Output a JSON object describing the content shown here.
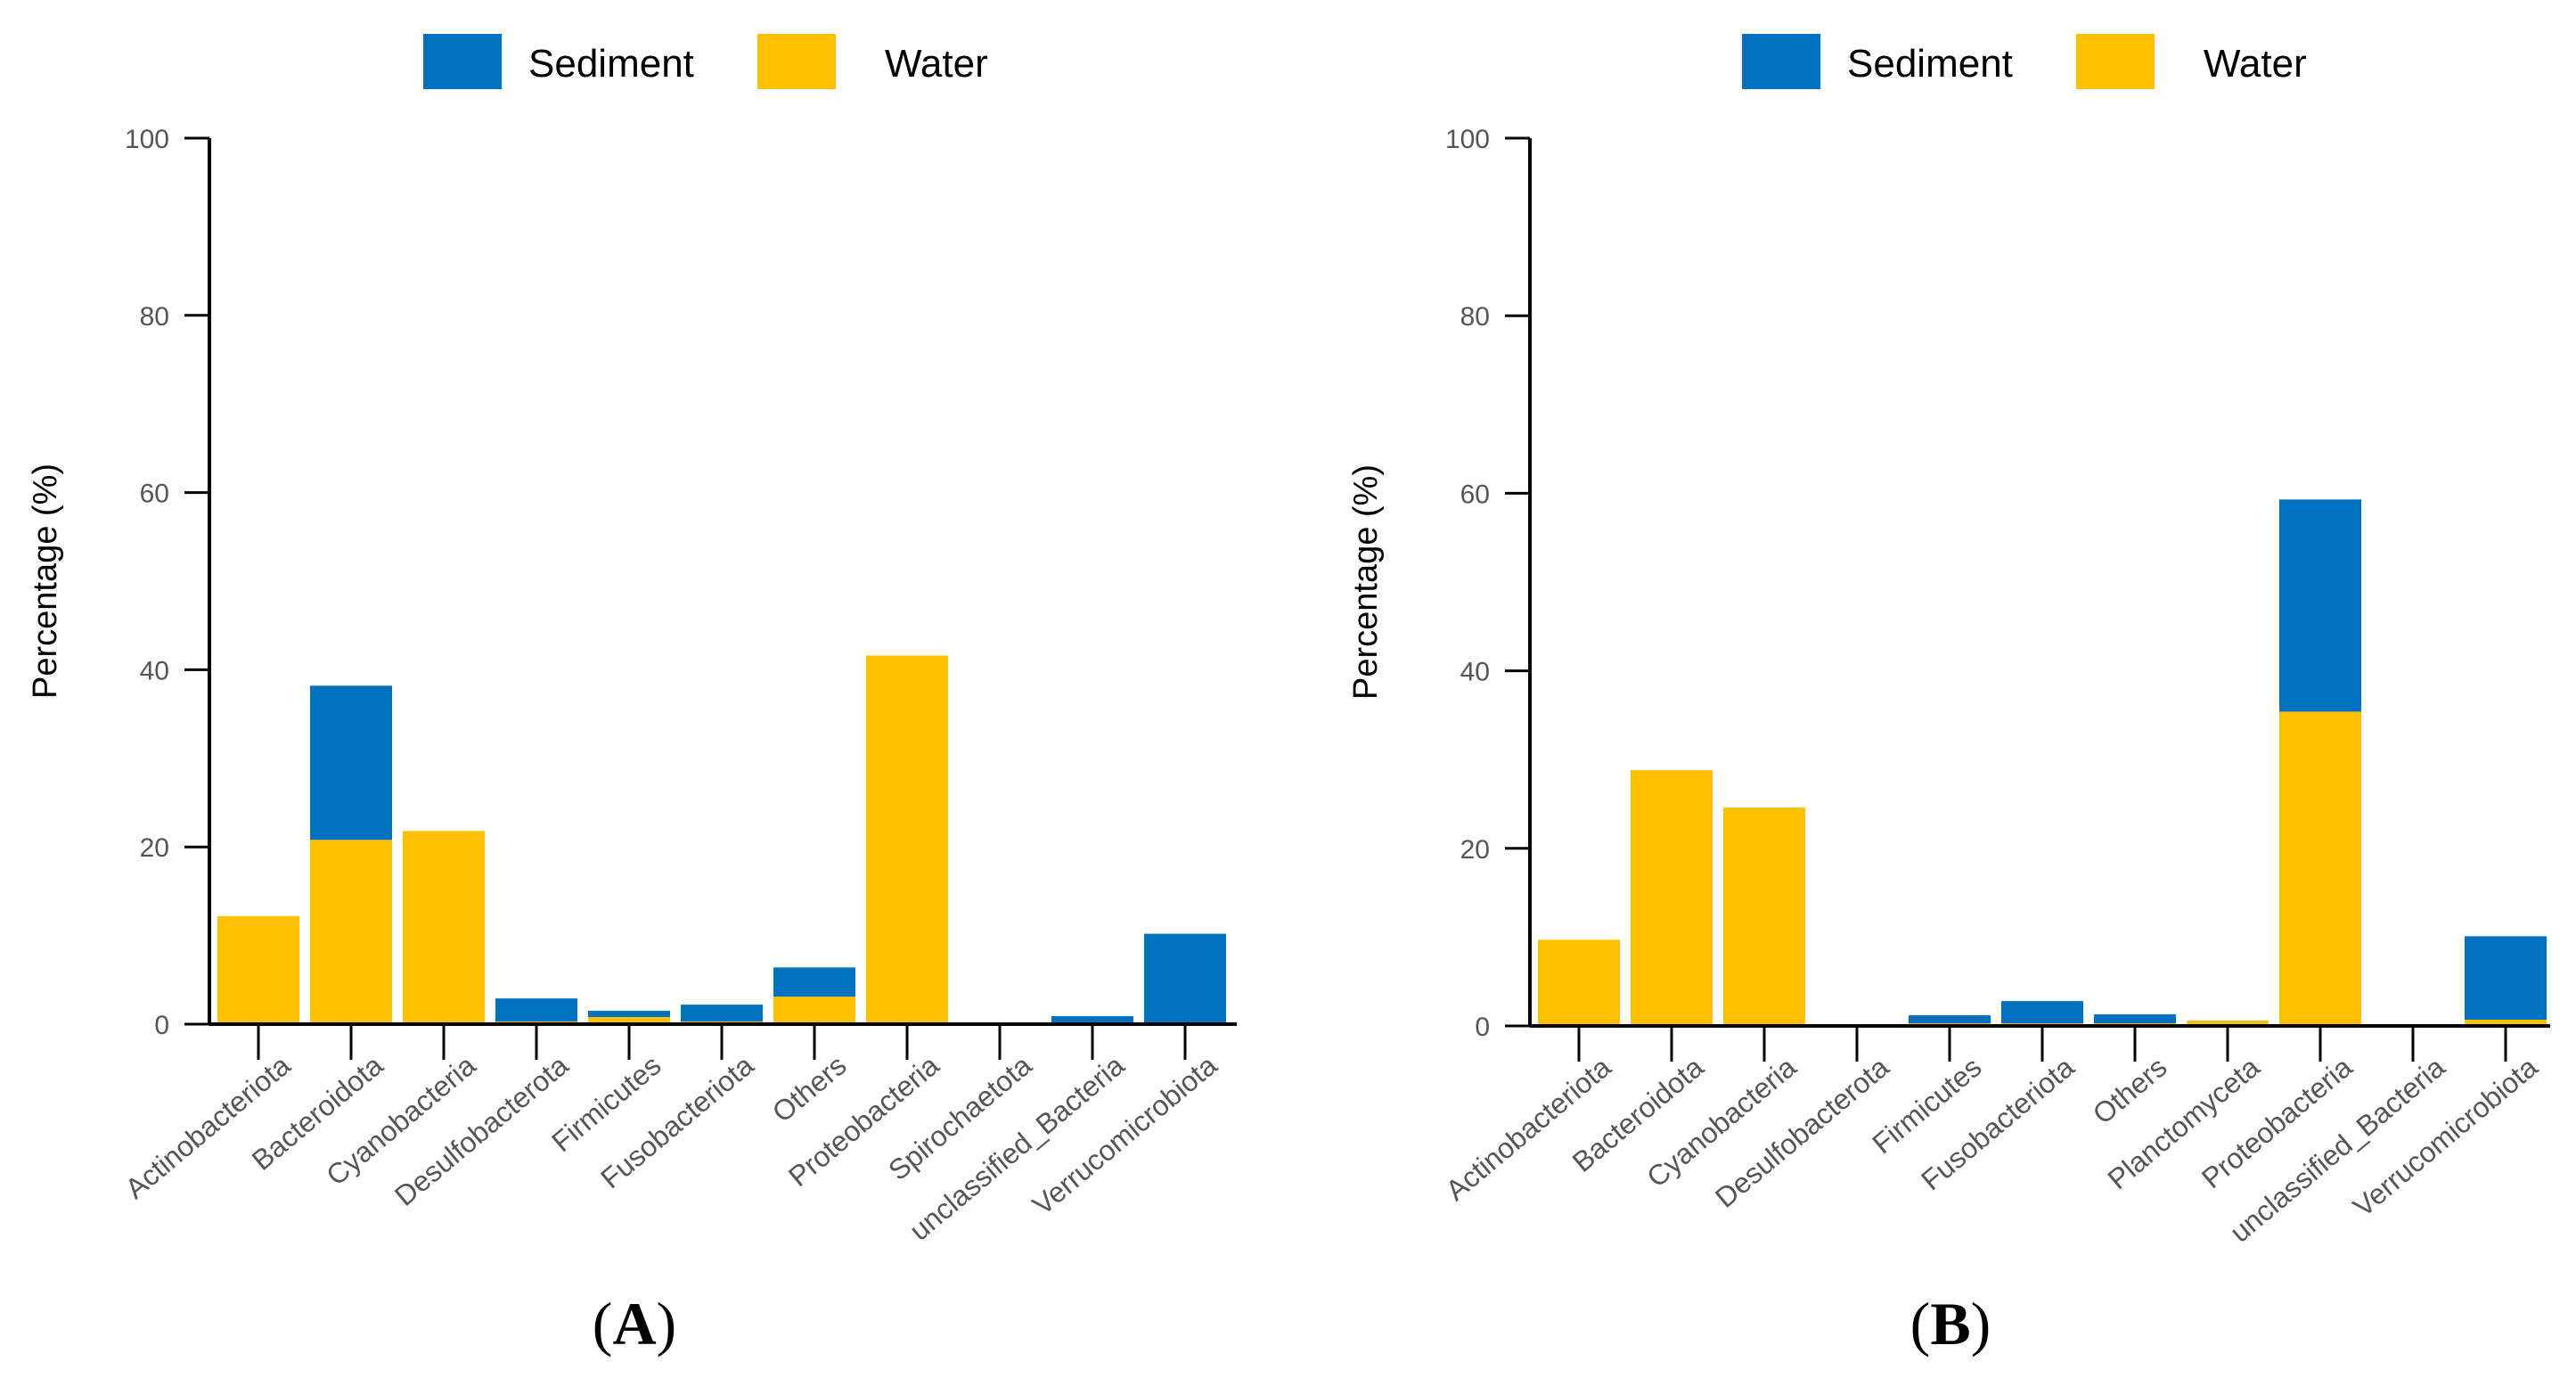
{
  "colors": {
    "sediment": "#0070C0",
    "water": "#FFC000"
  },
  "chart_data": [
    {
      "type": "bar",
      "stacked": true,
      "panel_label": "A",
      "categories": [
        "Actinobacteriota",
        "Bacteroidota",
        "Cyanobacteria",
        "Desulfobacterota",
        "Firmicutes",
        "Fusobacteriota",
        "Others",
        "Proteobacteria",
        "Spirochaetota",
        "unclassified_Bacteria",
        "Verrucomicrobiota"
      ],
      "series": [
        {
          "name": "Water",
          "values": [
            12.2,
            20.8,
            21.8,
            0.3,
            0.8,
            0.3,
            3.1,
            41.6,
            0,
            0.2,
            0.2
          ]
        },
        {
          "name": "Sediment",
          "values": [
            0,
            17.4,
            0,
            2.6,
            0.7,
            1.9,
            3.3,
            0,
            0,
            0.7,
            10.0
          ]
        }
      ],
      "ylabel": "Percentage (%)",
      "ylim": [
        0,
        100
      ],
      "yticks": [
        "0",
        "20",
        "40",
        "60",
        "80",
        "100"
      ],
      "legend": {
        "placement": "top",
        "entries": [
          "Sediment",
          "Water"
        ]
      },
      "grid": false
    },
    {
      "type": "bar",
      "stacked": true,
      "panel_label": "B",
      "categories": [
        "Actinobacteriota",
        "Bacteroidota",
        "Cyanobacteria",
        "Desulfobacterota",
        "Firmicutes",
        "Fusobacteriota",
        "Others",
        "Planctomyceta",
        "Proteobacteria",
        "unclassified_Bacteria",
        "Verrucomicrobiota"
      ],
      "series": [
        {
          "name": "Water",
          "values": [
            9.7,
            28.8,
            24.6,
            0,
            0.3,
            0.3,
            0.3,
            0.6,
            35.4,
            0,
            0.7
          ]
        },
        {
          "name": "Sediment",
          "values": [
            0,
            0,
            0,
            0,
            0.9,
            2.5,
            1.0,
            0,
            23.9,
            0,
            9.4
          ]
        }
      ],
      "ylabel": "Percentage (%)",
      "ylim": [
        0,
        100
      ],
      "yticks": [
        "0",
        "20",
        "40",
        "60",
        "80",
        "100"
      ],
      "legend": {
        "placement": "top",
        "entries": [
          "Sediment",
          "Water"
        ]
      },
      "grid": false
    }
  ]
}
